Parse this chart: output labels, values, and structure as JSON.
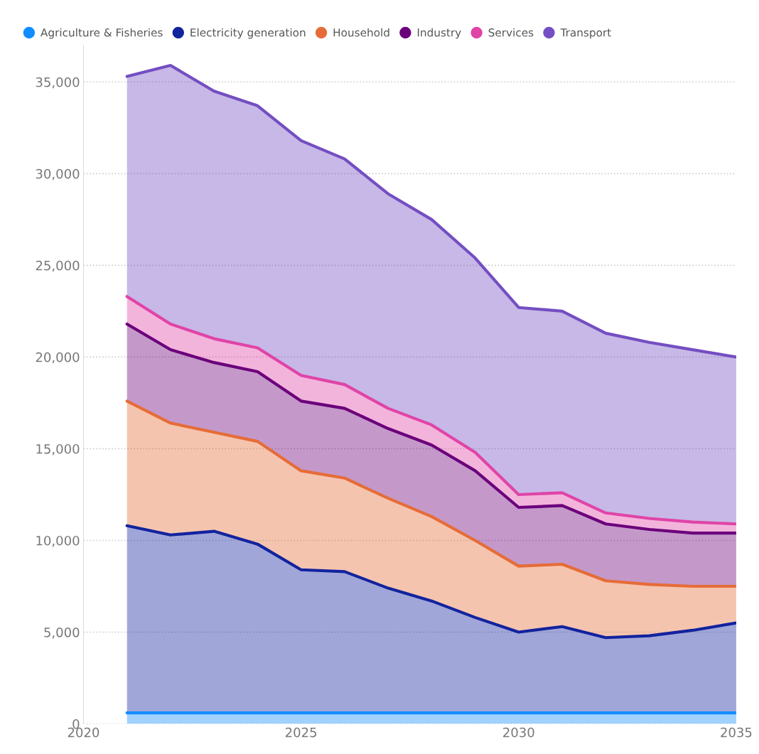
{
  "chart_data": {
    "type": "area",
    "stacked": true,
    "grid": "y",
    "legend": "top left",
    "x": [
      2021,
      2022,
      2023,
      2024,
      2025,
      2026,
      2027,
      2028,
      2029,
      2030,
      2031,
      2032,
      2033,
      2034,
      2035
    ],
    "xlim": [
      2020,
      2035
    ],
    "xticks": [
      2020,
      2025,
      2030,
      2035
    ],
    "ylim": [
      0,
      37000
    ],
    "yticks": [
      {
        "value": 0,
        "label": "0"
      },
      {
        "value": 5000,
        "label": "5,000"
      },
      {
        "value": 10000,
        "label": "10,000"
      },
      {
        "value": 15000,
        "label": "15,000"
      },
      {
        "value": 20000,
        "label": "20,000"
      },
      {
        "value": 25000,
        "label": "25,000"
      },
      {
        "value": 30000,
        "label": "30,000"
      },
      {
        "value": 35000,
        "label": "35,000"
      }
    ],
    "series": [
      {
        "name": "Agriculture & Fisheries",
        "color": "#118dff",
        "values": [
          600,
          600,
          600,
          600,
          600,
          600,
          600,
          600,
          600,
          600,
          600,
          600,
          600,
          600,
          600
        ]
      },
      {
        "name": "Electricity generation",
        "color": "#12239e",
        "values": [
          10200,
          9700,
          9900,
          9200,
          7800,
          7700,
          6800,
          6100,
          5200,
          4400,
          4700,
          4100,
          4200,
          4500,
          4900
        ]
      },
      {
        "name": "Household",
        "color": "#e66c37",
        "values": [
          6800,
          6100,
          5400,
          5600,
          5400,
          5100,
          4900,
          4600,
          4200,
          3600,
          3400,
          3100,
          2800,
          2400,
          2000
        ]
      },
      {
        "name": "Industry",
        "color": "#6b007b",
        "values": [
          4200,
          4000,
          3800,
          3800,
          3800,
          3800,
          3800,
          3900,
          3800,
          3200,
          3200,
          3100,
          3000,
          2900,
          2900
        ]
      },
      {
        "name": "Services",
        "color": "#e044a7",
        "values": [
          1500,
          1400,
          1300,
          1300,
          1400,
          1300,
          1100,
          1100,
          1000,
          700,
          700,
          600,
          600,
          600,
          500
        ]
      },
      {
        "name": "Transport",
        "color": "#744ec2",
        "values": [
          12000,
          14100,
          13500,
          13200,
          12800,
          12300,
          11700,
          11200,
          10600,
          10200,
          9900,
          9800,
          9600,
          9400,
          9100
        ]
      }
    ]
  }
}
